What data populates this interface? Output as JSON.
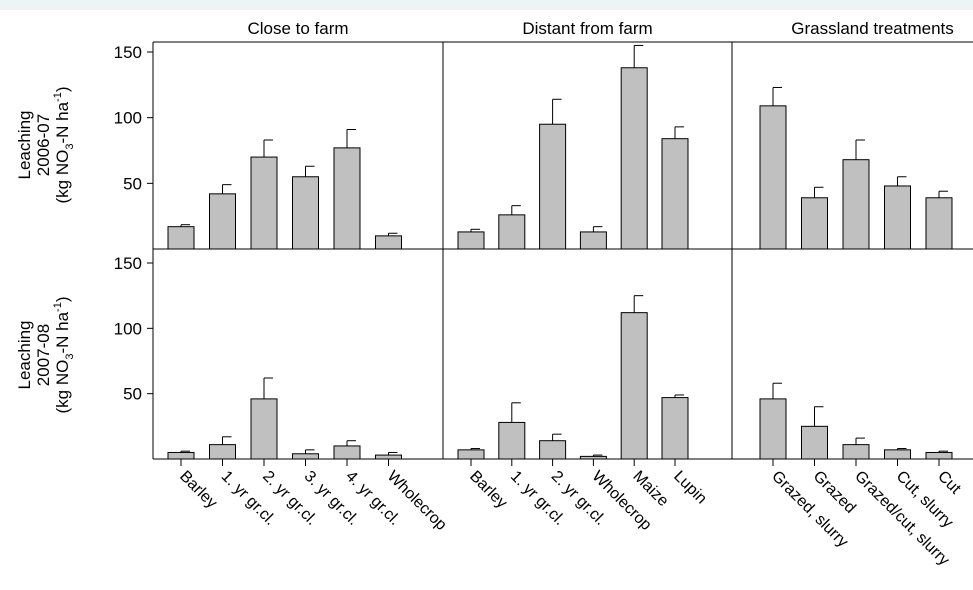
{
  "chart_data": {
    "type": "bar",
    "panel_titles": [
      "Close to farm",
      "Distant from farm",
      "Grassland treatments"
    ],
    "row_labels": [
      {
        "line1": "Leaching",
        "line2": "2006-07",
        "line3": {
          "pre": "(kg NO",
          "sub": "3",
          "mid": "-N ha",
          "sup": "-1",
          "post": ")"
        }
      },
      {
        "line1": "Leaching",
        "line2": "2007-08",
        "line3": {
          "pre": "(kg NO",
          "sub": "3",
          "mid": "-N ha",
          "sup": "-1",
          "post": ")"
        }
      }
    ],
    "yticks": [
      50,
      100,
      150
    ],
    "ylim": [
      0,
      160
    ],
    "groups": [
      {
        "title": "Close to farm",
        "categories": [
          "Barley",
          "1. yr gr.cl.",
          "2. yr gr.cl.",
          "3. yr gr.cl.",
          "4. yr gr.cl.",
          "Wholecrop"
        ],
        "series": [
          {
            "period": "2006-07",
            "values": [
              17,
              42,
              70,
              55,
              77,
              10
            ],
            "errors": [
              1.5,
              7,
              13,
              8,
              14,
              2
            ]
          },
          {
            "period": "2007-08",
            "values": [
              5,
              11,
              46,
              4,
              10,
              3
            ],
            "errors": [
              1,
              6,
              16,
              3,
              4,
              2
            ]
          }
        ]
      },
      {
        "title": "Distant from farm",
        "categories": [
          "Barley",
          "1. yr gr.cl.",
          "2. yr gr.cl.",
          "Wholecrop",
          "Maize",
          "Lupin"
        ],
        "series": [
          {
            "period": "2006-07",
            "values": [
              13,
              26,
              95,
              13,
              138,
              84
            ],
            "errors": [
              2,
              7,
              19,
              4,
              17,
              9
            ]
          },
          {
            "period": "2007-08",
            "values": [
              7,
              28,
              14,
              2,
              112,
              47
            ],
            "errors": [
              1,
              15,
              5,
              1,
              13,
              2
            ]
          }
        ]
      },
      {
        "title": "Grassland treatments",
        "categories": [
          "Grazed, slurry",
          "Grazed",
          "Grazed/cut, slurry",
          "Cut, slurry",
          "Cut"
        ],
        "series": [
          {
            "period": "2006-07",
            "values": [
              109,
              39,
              68,
              48,
              39
            ],
            "errors": [
              14,
              8,
              15,
              7,
              5
            ]
          },
          {
            "period": "2007-08",
            "values": [
              46,
              25,
              11,
              7,
              5
            ],
            "errors": [
              12,
              15,
              5,
              1,
              1
            ]
          }
        ]
      }
    ]
  }
}
